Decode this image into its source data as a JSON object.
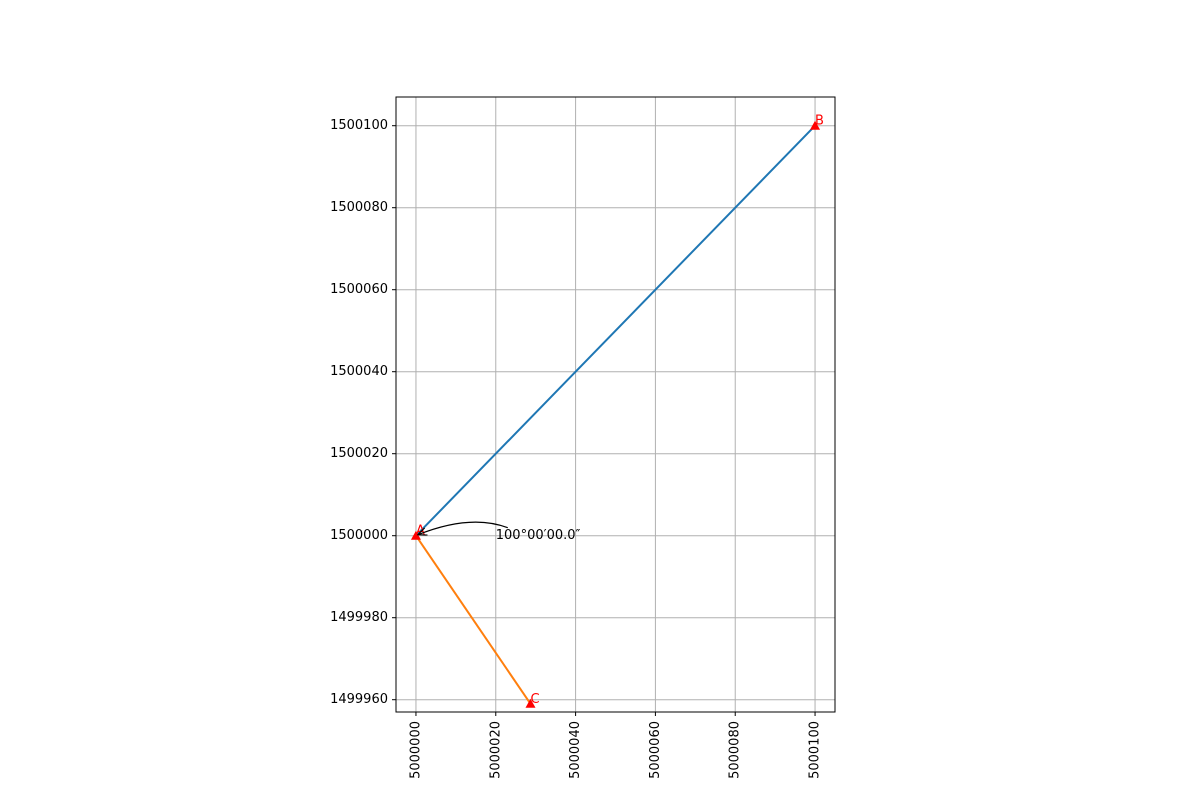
{
  "chart_data": {
    "type": "line",
    "title": "",
    "xlabel": "",
    "ylabel": "",
    "xlim": [
      4999995,
      5000105
    ],
    "ylim": [
      1499957,
      1500107
    ],
    "grid": true,
    "x_ticks": [
      5000000,
      5000020,
      5000040,
      5000060,
      5000080,
      5000100
    ],
    "y_ticks": [
      1499960,
      1499980,
      1500000,
      1500020,
      1500040,
      1500060,
      1500080,
      1500100
    ],
    "series": [
      {
        "color": "#1f77b4",
        "x": [
          5000000,
          5000100
        ],
        "y": [
          1500000,
          1500100
        ]
      },
      {
        "color": "#ff7f0e",
        "x": [
          5000000,
          5000028.7
        ],
        "y": [
          1500000,
          1499959.0
        ]
      }
    ],
    "points": [
      {
        "label": "A",
        "x": 5000000,
        "y": 1500000
      },
      {
        "label": "B",
        "x": 5000100,
        "y": 1500100
      },
      {
        "label": "C",
        "x": 5000028.7,
        "y": 1499959.0
      }
    ],
    "point_color": "#ff0000",
    "annotation": {
      "text": "100°00′00.0″",
      "arrow_to": {
        "x": 5000000,
        "y": 1500000
      },
      "text_at": {
        "x": 5000020,
        "y": 1500000
      }
    }
  }
}
